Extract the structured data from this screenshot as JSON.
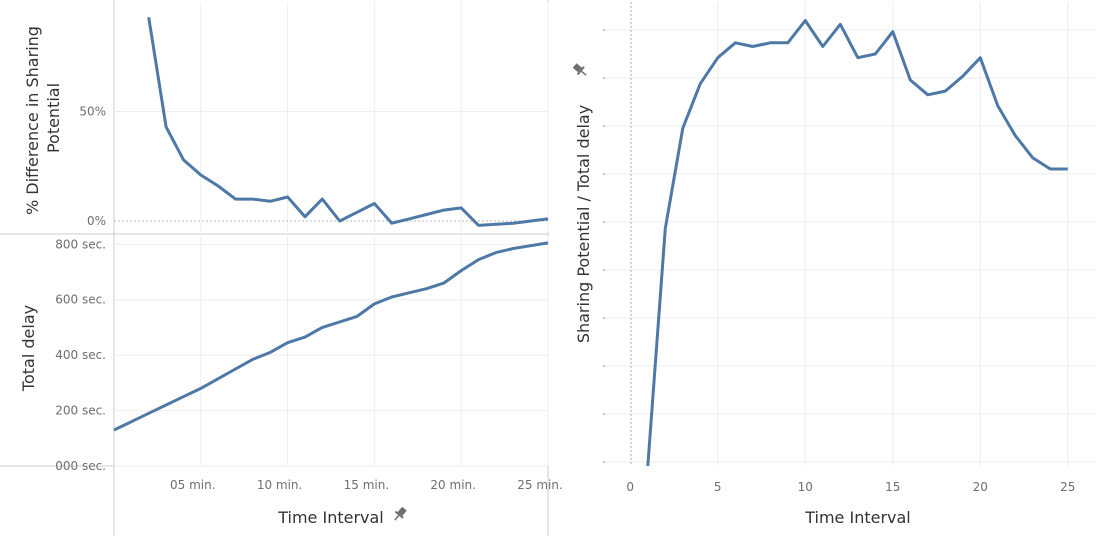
{
  "colors": {
    "line": "#4e79a7",
    "grid": "#eeeeee",
    "axis": "#cccccc",
    "text": "#6f6f6f",
    "title": "#333333"
  },
  "chart_data": [
    {
      "type": "line",
      "title": "",
      "xlabel": "Time Interval",
      "xlabel_icon": "pin-icon",
      "ylabel": "% Difference in Sharing Potential",
      "ylabel_lines": [
        "% Difference in Sharing",
        "Potential"
      ],
      "ylim": [
        -0.05,
        1.0
      ],
      "xlim": [
        0,
        25
      ],
      "y_ticks": [
        {
          "v": 0.5,
          "label": "50%"
        },
        {
          "v": 0.0,
          "label": "0%"
        }
      ],
      "series": [
        {
          "x": [
            2,
            3,
            4,
            5,
            6,
            7,
            8,
            9,
            10,
            11,
            12,
            13,
            14,
            15,
            16,
            17,
            18,
            19,
            20,
            21,
            22,
            23,
            24,
            25
          ],
          "y": [
            0.93,
            0.43,
            0.28,
            0.21,
            0.16,
            0.1,
            0.1,
            0.09,
            0.11,
            0.02,
            0.1,
            0.0,
            0.04,
            0.08,
            -0.01,
            0.01,
            0.03,
            0.05,
            0.06,
            -0.02,
            -0.015,
            -0.01,
            0.0,
            0.01
          ]
        }
      ]
    },
    {
      "type": "line",
      "title": "",
      "xlabel": "Time Interval",
      "ylabel": "Total delay",
      "ylim": [
        0,
        830
      ],
      "xlim": [
        0,
        25
      ],
      "x_ticks": [
        {
          "v": 5,
          "label": "05 min."
        },
        {
          "v": 10,
          "label": "10 min."
        },
        {
          "v": 15,
          "label": "15 min."
        },
        {
          "v": 20,
          "label": "20 min."
        },
        {
          "v": 25,
          "label": "25 min."
        }
      ],
      "y_ticks": [
        {
          "v": 800,
          "label": "800 sec."
        },
        {
          "v": 600,
          "label": "600 sec."
        },
        {
          "v": 400,
          "label": "400 sec."
        },
        {
          "v": 200,
          "label": "200 sec."
        },
        {
          "v": 0,
          "label": "000 sec."
        }
      ],
      "series": [
        {
          "x": [
            0,
            1,
            2,
            3,
            4,
            5,
            6,
            7,
            8,
            9,
            10,
            11,
            12,
            13,
            14,
            15,
            16,
            17,
            18,
            19,
            20,
            21,
            22,
            23,
            24,
            25
          ],
          "y": [
            130,
            160,
            190,
            220,
            250,
            280,
            315,
            350,
            385,
            410,
            445,
            465,
            500,
            520,
            540,
            585,
            610,
            625,
            640,
            660,
            705,
            745,
            770,
            785,
            795,
            805
          ]
        }
      ]
    },
    {
      "type": "line",
      "title": "",
      "xlabel": "Time Interval",
      "ylabel": "Sharing Potential / Total delay",
      "ylabel_icon": "pin-icon",
      "xlim": [
        -1.5,
        26.5
      ],
      "ylim": [
        -0.2,
        1.05
      ],
      "x_ticks": [
        {
          "v": 0,
          "label": "0"
        },
        {
          "v": 5,
          "label": "5"
        },
        {
          "v": 10,
          "label": "10"
        },
        {
          "v": 15,
          "label": "15"
        },
        {
          "v": 20,
          "label": "20"
        },
        {
          "v": 25,
          "label": "25"
        }
      ],
      "y_tick_count": 10,
      "series": [
        {
          "x": [
            1,
            2,
            3,
            4,
            5,
            6,
            7,
            8,
            9,
            10,
            11,
            12,
            13,
            14,
            15,
            16,
            17,
            18,
            19,
            20,
            21,
            22,
            23,
            24,
            25
          ],
          "y": [
            -0.2,
            0.44,
            0.71,
            0.83,
            0.9,
            0.94,
            0.93,
            0.94,
            0.94,
            1.0,
            0.93,
            0.99,
            0.9,
            0.91,
            0.97,
            0.84,
            0.8,
            0.81,
            0.85,
            0.9,
            0.77,
            0.69,
            0.63,
            0.6,
            0.6
          ]
        }
      ]
    }
  ]
}
